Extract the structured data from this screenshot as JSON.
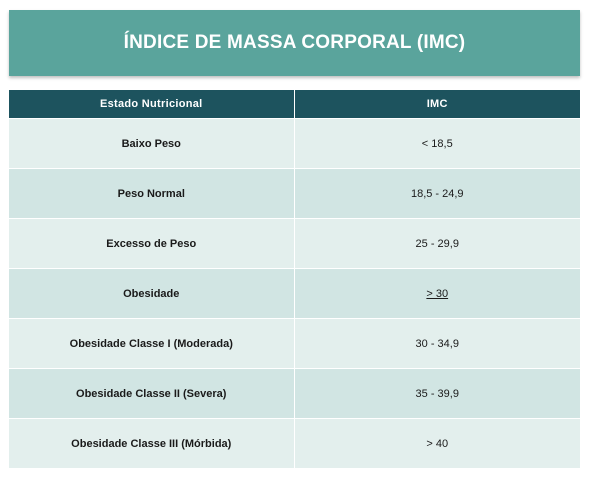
{
  "title": "ÍNDICE DE MASSA CORPORAL (IMC)",
  "table": {
    "headers": [
      "Estado Nutricional",
      "IMC"
    ],
    "rows": [
      {
        "estado": "Baixo Peso",
        "imc": "< 18,5"
      },
      {
        "estado": "Peso Normal",
        "imc": "18,5 - 24,9"
      },
      {
        "estado": "Excesso de Peso",
        "imc": "25 - 29,9"
      },
      {
        "estado": "Obesidade",
        "imc": "> 30"
      },
      {
        "estado": "Obesidade Classe I (Moderada)",
        "imc": "30 - 34,9"
      },
      {
        "estado": "Obesidade Classe II (Severa)",
        "imc": "35 - 39,9"
      },
      {
        "estado": "Obesidade Classe III (Mórbida)",
        "imc": "> 40"
      }
    ]
  },
  "colors": {
    "banner": "#5aa49c",
    "header": "#1d535e",
    "row_light": "#e3efed",
    "row_dark": "#d1e5e3"
  }
}
